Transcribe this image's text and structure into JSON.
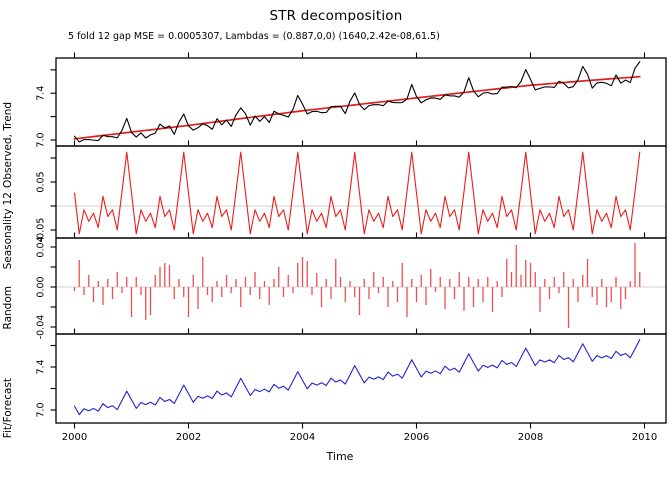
{
  "chart_data": {
    "type": "line",
    "title": "STR decomposition",
    "subtitle": "5 fold 12 gap MSE = 0.0005307, Lambdas = (0.887,0,0) (1640,2.42e-08,61.5)",
    "xlabel": "Time",
    "x_start_year": 2000,
    "points_per_year": 12,
    "n_points": 120,
    "x_ticks": [
      2000,
      2002,
      2004,
      2006,
      2008,
      2010
    ],
    "x_tick_labels": [
      "2000",
      "2002",
      "2004",
      "2006",
      "2008",
      "2010"
    ],
    "xlim": [
      1999.68,
      2010.35
    ],
    "grid": false,
    "legend": "none",
    "panels": [
      {
        "name": "observed_trend",
        "ylabel": "Observed, Trend",
        "series": [
          "observed",
          "trend"
        ],
        "style": "line",
        "zero_line": false,
        "ylim": [
          6.949,
          7.701
        ],
        "yticks": [
          {
            "v": 7.0,
            "label": "7.0"
          },
          {
            "v": 7.2,
            "label": null
          },
          {
            "v": 7.4,
            "label": "7.4"
          },
          {
            "v": 7.6,
            "label": null
          }
        ]
      },
      {
        "name": "seasonality_12",
        "ylabel": "Seasonality 12",
        "series": [
          "seasonal"
        ],
        "style": "line",
        "zero_line": true,
        "ylim": [
          -0.0667,
          0.125
        ],
        "yticks": [
          {
            "v": -0.05,
            "label": "-0.05"
          },
          {
            "v": 0.0,
            "label": null
          },
          {
            "v": 0.05,
            "label": "0.05"
          },
          {
            "v": 0.1,
            "label": null
          }
        ]
      },
      {
        "name": "random",
        "ylabel": "Random",
        "series": [
          "random"
        ],
        "style": "bars",
        "zero_line": true,
        "ylim": [
          -0.047,
          0.049
        ],
        "yticks": [
          {
            "v": -0.04,
            "label": "-0.04"
          },
          {
            "v": -0.02,
            "label": null
          },
          {
            "v": 0.0,
            "label": "0.00"
          },
          {
            "v": 0.02,
            "label": null
          },
          {
            "v": 0.04,
            "label": "0.04"
          }
        ]
      },
      {
        "name": "fit_forecast",
        "ylabel": "Fit/Forecast",
        "series": [
          "fit"
        ],
        "style": "line",
        "zero_line": false,
        "ylim": [
          6.879,
          7.707
        ],
        "yticks": [
          {
            "v": 7.0,
            "label": "7.0"
          },
          {
            "v": 7.2,
            "label": null
          },
          {
            "v": 7.4,
            "label": "7.4"
          },
          {
            "v": 7.6,
            "label": null
          }
        ]
      }
    ],
    "composition": {
      "observed": "trend + seasonal + random",
      "fit": "trend + seasonal"
    },
    "trend_year_knots": [
      7.01,
      7.068,
      7.125,
      7.188,
      7.25,
      7.305,
      7.36,
      7.415,
      7.468,
      7.508,
      7.545
    ],
    "seasonal_monthly": [
      0.027,
      -0.058,
      -0.008,
      -0.032,
      -0.015,
      -0.045,
      0.02,
      -0.022,
      -0.008,
      -0.05,
      0.03,
      0.112
    ],
    "random_values": [
      -0.004,
      0.027,
      -0.008,
      0.012,
      -0.015,
      0.006,
      -0.018,
      0.008,
      -0.012,
      0.015,
      -0.006,
      0.01,
      -0.03,
      0.01,
      -0.008,
      -0.033,
      -0.028,
      0.012,
      0.02,
      0.024,
      0.022,
      -0.012,
      0.008,
      -0.01,
      -0.03,
      0.012,
      -0.022,
      0.03,
      -0.008,
      -0.015,
      0.006,
      -0.01,
      0.012,
      -0.006,
      0.008,
      -0.02,
      0.01,
      -0.008,
      0.015,
      -0.012,
      0.006,
      -0.018,
      0.008,
      0.02,
      -0.01,
      0.012,
      -0.006,
      0.024,
      0.03,
      0.026,
      -0.008,
      0.014,
      -0.02,
      0.008,
      -0.012,
      0.028,
      0.01,
      -0.015,
      0.006,
      -0.01,
      -0.028,
      0.008,
      -0.012,
      0.015,
      -0.006,
      0.01,
      -0.02,
      0.006,
      -0.015,
      0.024,
      -0.03,
      0.008,
      -0.015,
      0.012,
      -0.018,
      0.018,
      -0.005,
      0.01,
      -0.022,
      0.008,
      -0.012,
      0.015,
      -0.024,
      0.01,
      -0.02,
      0.008,
      -0.015,
      0.01,
      -0.025,
      0.006,
      -0.01,
      0.028,
      0.015,
      0.042,
      0.012,
      0.027,
      0.024,
      0.015,
      -0.025,
      0.008,
      -0.012,
      0.01,
      -0.006,
      0.015,
      -0.041,
      0.008,
      -0.015,
      0.012,
      0.028,
      -0.01,
      -0.018,
      0.008,
      -0.02,
      -0.015,
      0.01,
      -0.022,
      -0.012,
      0.006,
      0.044,
      0.015
    ],
    "colors": {
      "observed": "#000000",
      "trend": "#e02020",
      "seasonal": "#ec1c1c",
      "random_bars": "#ee4f4f",
      "fit": "#2424cf",
      "zero_line": "#d9d9d9",
      "axis": "#000000"
    }
  }
}
